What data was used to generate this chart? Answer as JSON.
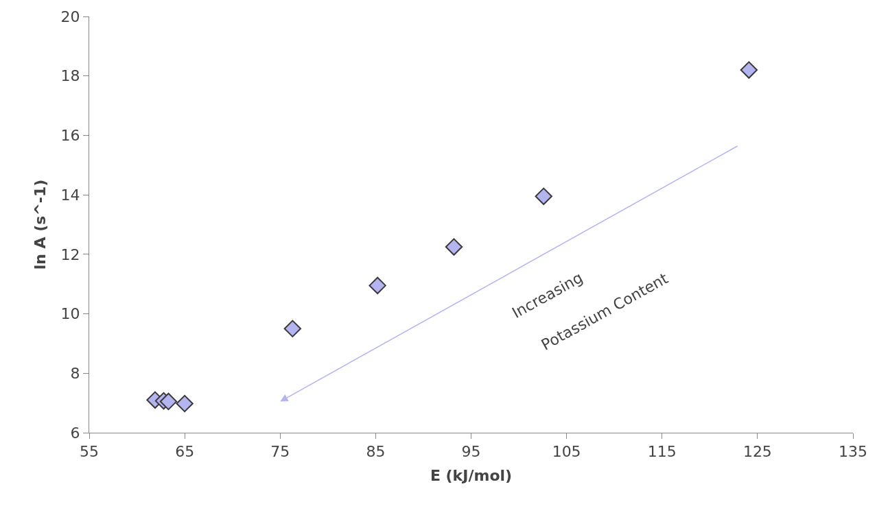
{
  "chart_data": {
    "type": "scatter",
    "xlabel": "E (kJ/mol)",
    "ylabel": "ln A (s^-1)",
    "x": [
      61.9,
      62.8,
      63.3,
      65.0,
      76.3,
      85.2,
      93.2,
      102.6,
      124.1
    ],
    "series": [
      {
        "color": "#b4b4f0",
        "values": [
          7.1,
          7.07,
          7.05,
          6.98,
          9.5,
          10.95,
          12.25,
          13.95,
          18.2
        ]
      }
    ],
    "xlim": [
      55,
      135
    ],
    "xticks": [
      55,
      65,
      75,
      85,
      95,
      105,
      115,
      125,
      135
    ],
    "ylim": [
      6,
      20
    ],
    "yticks": [
      6,
      8,
      10,
      12,
      14,
      16,
      18,
      20
    ],
    "marker": "diamond",
    "legend": false,
    "annotations": [
      "Increasing",
      "Potassium Content"
    ]
  }
}
